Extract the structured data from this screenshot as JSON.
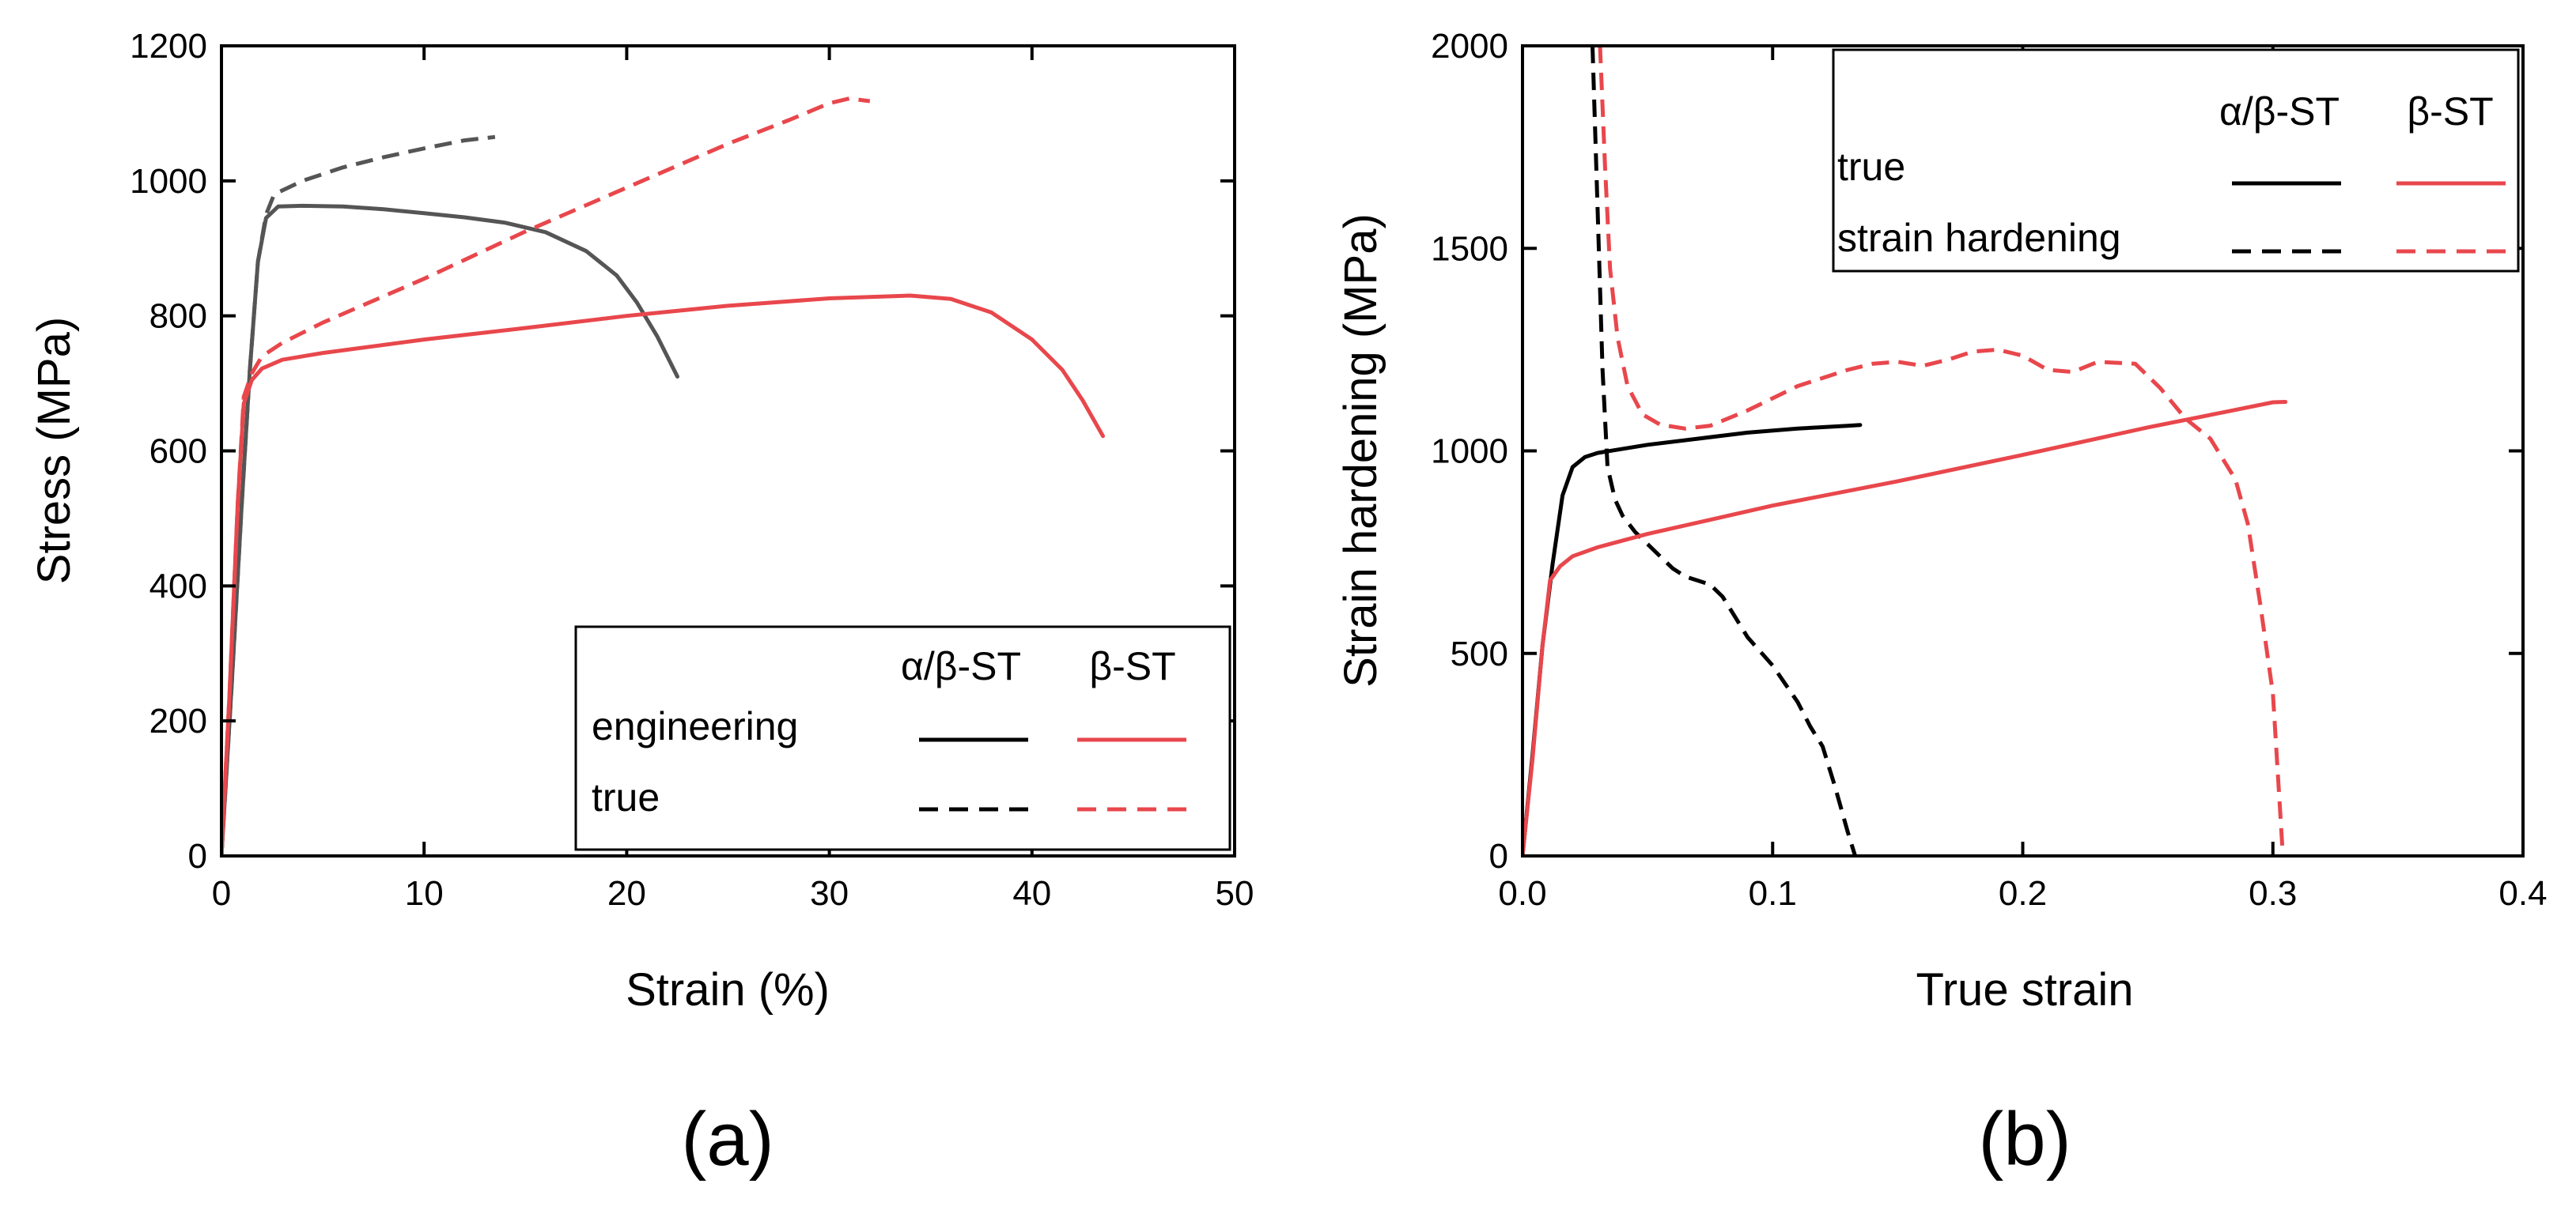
{
  "chart_data": [
    {
      "id": "a",
      "type": "line",
      "panel_label": "(a)",
      "xlabel": "Strain (%)",
      "ylabel": "Stress (MPa)",
      "xlim": [
        0,
        50
      ],
      "ylim": [
        0,
        1200
      ],
      "xticks": [
        0,
        10,
        20,
        30,
        40,
        50
      ],
      "yticks": [
        0,
        200,
        400,
        600,
        800,
        1000,
        1200
      ],
      "grid": false,
      "legend": {
        "position": "bottom-right",
        "col_headers": [
          "α/β-ST",
          "β-ST"
        ],
        "row_labels": [
          "engineering",
          "true"
        ]
      },
      "series": [
        {
          "name": "α/β-ST engineering",
          "color": "#555555",
          "dash": "solid",
          "points": [
            [
              0,
              0
            ],
            [
              0.5,
              250
            ],
            [
              1.0,
              520
            ],
            [
              1.4,
              720
            ],
            [
              1.8,
              880
            ],
            [
              2.2,
              945
            ],
            [
              2.8,
              962
            ],
            [
              4,
              963
            ],
            [
              6,
              962
            ],
            [
              8,
              958
            ],
            [
              10,
              952
            ],
            [
              12,
              946
            ],
            [
              14,
              938
            ],
            [
              16,
              924
            ],
            [
              18,
              896
            ],
            [
              19.5,
              860
            ],
            [
              20.5,
              820
            ],
            [
              21.5,
              770
            ],
            [
              22.5,
              710
            ]
          ]
        },
        {
          "name": "α/β-ST true",
          "color": "#555555",
          "dash": "dashed",
          "points": [
            [
              0,
              0
            ],
            [
              0.5,
              250
            ],
            [
              1.0,
              520
            ],
            [
              1.4,
              720
            ],
            [
              1.8,
              880
            ],
            [
              2.2,
              950
            ],
            [
              2.6,
              980
            ],
            [
              4,
              1000
            ],
            [
              6,
              1020
            ],
            [
              8,
              1035
            ],
            [
              10,
              1048
            ],
            [
              12,
              1060
            ],
            [
              13.5,
              1065
            ]
          ]
        },
        {
          "name": "β-ST engineering",
          "color": "#e8474c",
          "dash": "solid",
          "points": [
            [
              0,
              0
            ],
            [
              0.4,
              240
            ],
            [
              0.8,
              520
            ],
            [
              1.1,
              670
            ],
            [
              1.5,
              705
            ],
            [
              2,
              722
            ],
            [
              3,
              735
            ],
            [
              5,
              745
            ],
            [
              10,
              765
            ],
            [
              15,
              782
            ],
            [
              20,
              800
            ],
            [
              25,
              815
            ],
            [
              30,
              826
            ],
            [
              34,
              830
            ],
            [
              36,
              825
            ],
            [
              38,
              805
            ],
            [
              40,
              765
            ],
            [
              41.5,
              720
            ],
            [
              42.5,
              675
            ],
            [
              43.5,
              622
            ]
          ]
        },
        {
          "name": "β-ST true",
          "color": "#e8474c",
          "dash": "dashed",
          "points": [
            [
              0,
              0
            ],
            [
              0.4,
              240
            ],
            [
              0.8,
              520
            ],
            [
              1.1,
              680
            ],
            [
              1.5,
              715
            ],
            [
              2,
              740
            ],
            [
              3,
              760
            ],
            [
              5,
              790
            ],
            [
              10,
              855
            ],
            [
              15,
              925
            ],
            [
              20,
              990
            ],
            [
              25,
              1055
            ],
            [
              28,
              1090
            ],
            [
              30,
              1115
            ],
            [
              31,
              1122
            ],
            [
              32,
              1118
            ]
          ]
        }
      ]
    },
    {
      "id": "b",
      "type": "line",
      "panel_label": "(b)",
      "xlabel": "True strain",
      "ylabel": "Strain hardening (MPa)",
      "xlim": [
        0,
        0.4
      ],
      "ylim": [
        0,
        2000
      ],
      "xticks": [
        "0.0",
        "0.1",
        "0.2",
        "0.3",
        "0.4"
      ],
      "yticks": [
        0,
        500,
        1000,
        1500,
        2000
      ],
      "grid": false,
      "legend": {
        "position": "top-right",
        "col_headers": [
          "α/β-ST",
          "β-ST"
        ],
        "row_labels": [
          "true",
          "strain hardening"
        ]
      },
      "series": [
        {
          "name": "α/β-ST true",
          "color": "#000000",
          "dash": "solid",
          "points": [
            [
              0,
              0
            ],
            [
              0.004,
              250
            ],
            [
              0.008,
              520
            ],
            [
              0.012,
              720
            ],
            [
              0.016,
              890
            ],
            [
              0.02,
              960
            ],
            [
              0.025,
              985
            ],
            [
              0.03,
              995
            ],
            [
              0.05,
              1015
            ],
            [
              0.07,
              1030
            ],
            [
              0.09,
              1045
            ],
            [
              0.11,
              1055
            ],
            [
              0.13,
              1062
            ],
            [
              0.135,
              1064
            ]
          ]
        },
        {
          "name": "α/β-ST strain hardening",
          "color": "#000000",
          "dash": "dashed",
          "points": [
            [
              0.028,
              2000
            ],
            [
              0.03,
              1600
            ],
            [
              0.032,
              1200
            ],
            [
              0.034,
              960
            ],
            [
              0.037,
              880
            ],
            [
              0.04,
              840
            ],
            [
              0.045,
              800
            ],
            [
              0.05,
              770
            ],
            [
              0.055,
              740
            ],
            [
              0.06,
              710
            ],
            [
              0.065,
              690
            ],
            [
              0.07,
              680
            ],
            [
              0.075,
              670
            ],
            [
              0.08,
              640
            ],
            [
              0.085,
              590
            ],
            [
              0.09,
              540
            ],
            [
              0.1,
              470
            ],
            [
              0.11,
              380
            ],
            [
              0.115,
              320
            ],
            [
              0.12,
              270
            ],
            [
              0.125,
              170
            ],
            [
              0.13,
              60
            ],
            [
              0.133,
              0
            ]
          ]
        },
        {
          "name": "β-ST true",
          "color": "#e8474c",
          "dash": "solid",
          "points": [
            [
              0,
              0
            ],
            [
              0.004,
              240
            ],
            [
              0.008,
              520
            ],
            [
              0.011,
              680
            ],
            [
              0.015,
              715
            ],
            [
              0.02,
              740
            ],
            [
              0.03,
              762
            ],
            [
              0.05,
              795
            ],
            [
              0.1,
              865
            ],
            [
              0.15,
              925
            ],
            [
              0.2,
              990
            ],
            [
              0.25,
              1058
            ],
            [
              0.28,
              1095
            ],
            [
              0.3,
              1120
            ],
            [
              0.305,
              1121
            ]
          ]
        },
        {
          "name": "β-ST strain hardening",
          "color": "#e8474c",
          "dash": "dashed",
          "points": [
            [
              0.031,
              2000
            ],
            [
              0.033,
              1700
            ],
            [
              0.035,
              1450
            ],
            [
              0.038,
              1280
            ],
            [
              0.042,
              1160
            ],
            [
              0.048,
              1090
            ],
            [
              0.055,
              1065
            ],
            [
              0.065,
              1055
            ],
            [
              0.075,
              1062
            ],
            [
              0.09,
              1100
            ],
            [
              0.11,
              1160
            ],
            [
              0.13,
              1200
            ],
            [
              0.14,
              1215
            ],
            [
              0.15,
              1220
            ],
            [
              0.16,
              1210
            ],
            [
              0.17,
              1225
            ],
            [
              0.18,
              1245
            ],
            [
              0.19,
              1250
            ],
            [
              0.2,
              1235
            ],
            [
              0.21,
              1200
            ],
            [
              0.22,
              1195
            ],
            [
              0.23,
              1220
            ],
            [
              0.245,
              1215
            ],
            [
              0.255,
              1155
            ],
            [
              0.265,
              1080
            ],
            [
              0.275,
              1030
            ],
            [
              0.285,
              930
            ],
            [
              0.29,
              820
            ],
            [
              0.295,
              620
            ],
            [
              0.3,
              400
            ],
            [
              0.302,
              200
            ],
            [
              0.304,
              0
            ]
          ]
        }
      ]
    }
  ]
}
